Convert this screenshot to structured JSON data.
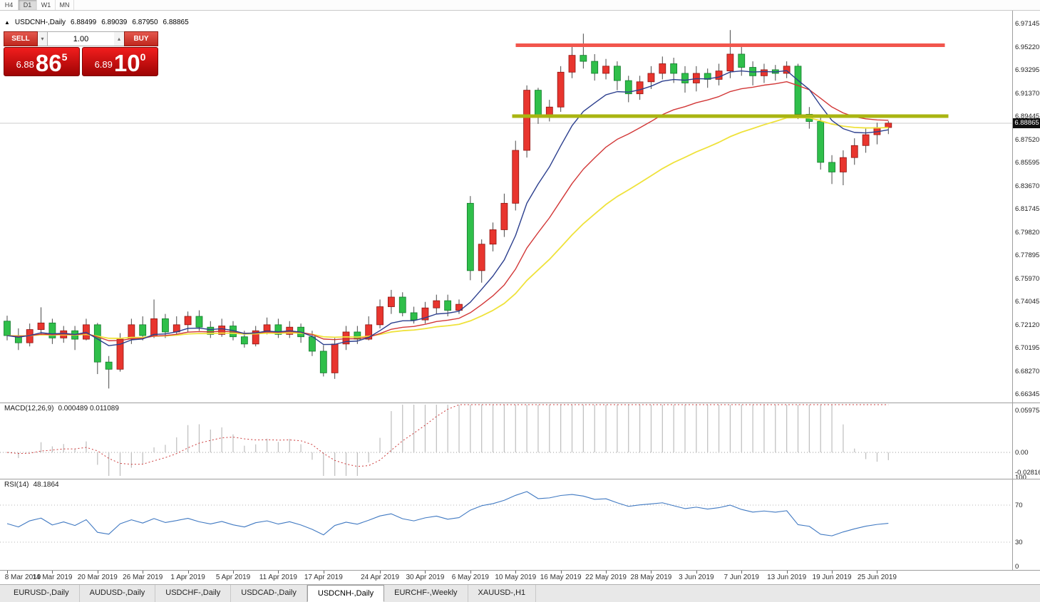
{
  "toolbar": {
    "timeframes": [
      {
        "label": "H4",
        "active": false
      },
      {
        "label": "D1",
        "active": true
      },
      {
        "label": "W1",
        "active": false
      },
      {
        "label": "MN",
        "active": false
      }
    ]
  },
  "symbol_bar": {
    "direction_arrow": "▲",
    "symbol": "USDCNH-,Daily",
    "open": "6.88499",
    "high": "6.89039",
    "low": "6.87950",
    "close": "6.88865"
  },
  "trade_panel": {
    "sell_label": "SELL",
    "buy_label": "BUY",
    "volume": "1.00",
    "volume_down_glyph": "▾",
    "volume_up_glyph": "▴",
    "sell_price": {
      "prefix": "6.88",
      "big": "86",
      "sup": "5"
    },
    "buy_price": {
      "prefix": "6.89",
      "big": "10",
      "sup": "0"
    }
  },
  "price_axis": {
    "labels": [
      "6.97145",
      "6.95220",
      "6.93295",
      "6.91370",
      "6.89445",
      "6.87520",
      "6.85595",
      "6.83670",
      "6.81745",
      "6.79820",
      "6.77895",
      "6.75970",
      "6.74045",
      "6.72120",
      "6.70195",
      "6.68270",
      "6.66345"
    ],
    "current": "6.88865"
  },
  "macd_panel": {
    "label": "MACD(12,26,9)",
    "values": "0.000489 0.011089",
    "axis": [
      "0.059758",
      "0.00",
      "-0.02816"
    ]
  },
  "rsi_panel": {
    "label": "RSI(14)",
    "value": "48.1864",
    "axis": [
      "100",
      "70",
      "30",
      "0"
    ]
  },
  "date_axis": {
    "ticks": [
      {
        "label": "8 Mar 2019",
        "index": 0
      },
      {
        "label": "14 Mar 2019",
        "index": 4
      },
      {
        "label": "20 Mar 2019",
        "index": 8
      },
      {
        "label": "26 Mar 2019",
        "index": 12
      },
      {
        "label": "1 Apr 2019",
        "index": 16
      },
      {
        "label": "5 Apr 2019",
        "index": 20
      },
      {
        "label": "11 Apr 2019",
        "index": 24
      },
      {
        "label": "17 Apr 2019",
        "index": 28
      },
      {
        "label": "24 Apr 2019",
        "index": 33
      },
      {
        "label": "30 Apr 2019",
        "index": 37
      },
      {
        "label": "6 May 2019",
        "index": 41
      },
      {
        "label": "10 May 2019",
        "index": 45
      },
      {
        "label": "16 May 2019",
        "index": 49
      },
      {
        "label": "22 May 2019",
        "index": 53
      },
      {
        "label": "28 May 2019",
        "index": 57
      },
      {
        "label": "3 Jun 2019",
        "index": 61
      },
      {
        "label": "7 Jun 2019",
        "index": 65
      },
      {
        "label": "13 Jun 2019",
        "index": 69
      },
      {
        "label": "19 Jun 2019",
        "index": 73
      },
      {
        "label": "25 Jun 2019",
        "index": 77
      }
    ]
  },
  "tabs": {
    "items": [
      {
        "label": "EURUSD-,Daily",
        "active": false
      },
      {
        "label": "AUDUSD-,Daily",
        "active": false
      },
      {
        "label": "USDCHF-,Daily",
        "active": false
      },
      {
        "label": "USDCAD-,Daily",
        "active": false
      },
      {
        "label": "USDCNH-,Daily",
        "active": true
      },
      {
        "label": "EURCHF-,Weekly",
        "active": false
      },
      {
        "label": "XAUUSD-,H1",
        "active": false
      }
    ]
  },
  "colors": {
    "up_candle": "#e8352e",
    "up_border": "#8f1410",
    "down_candle": "#2fbf4a",
    "down_border": "#127a2b",
    "wick": "#4a4a4a",
    "ma_fast": "#2c3f8e",
    "ma_mid": "#d23737",
    "ma_slow": "#efe23b",
    "resistance": "#f2564d",
    "support": "#a9b512",
    "current_price_line": "#cccccc",
    "badge_bg": "#101010",
    "macd_hist": "#bdbdbd",
    "macd_signal": "#cc3b3b",
    "rsi_line": "#4079c2",
    "level_line": "#b5b5b5"
  },
  "chart_data": {
    "type": "candlestick",
    "title": "USDCNH-,Daily",
    "current_price": 6.88865,
    "y_axis": {
      "top_price": 6.97145,
      "step": 0.01925
    },
    "ohlc": [
      [
        "8 Mar",
        6.724,
        6.7285,
        6.708,
        6.712
      ],
      [
        "11 Mar",
        6.712,
        6.718,
        6.7,
        6.706
      ],
      [
        "12 Mar",
        6.706,
        6.722,
        6.703,
        6.717
      ],
      [
        "13 Mar",
        6.717,
        6.7355,
        6.712,
        6.7225
      ],
      [
        "14 Mar",
        6.7225,
        6.726,
        6.705,
        6.71
      ],
      [
        "15 Mar",
        6.71,
        6.72,
        6.706,
        6.716
      ],
      [
        "18 Mar",
        6.716,
        6.72,
        6.7,
        6.709
      ],
      [
        "19 Mar",
        6.709,
        6.726,
        6.708,
        6.721
      ],
      [
        "20 Mar",
        6.721,
        6.7225,
        6.68,
        6.69
      ],
      [
        "21 Mar",
        6.69,
        6.695,
        6.668,
        6.684
      ],
      [
        "22 Mar",
        6.684,
        6.714,
        6.682,
        6.709
      ],
      [
        "25 Mar",
        6.709,
        6.726,
        6.705,
        6.721
      ],
      [
        "26 Mar",
        6.721,
        6.728,
        6.708,
        6.712
      ],
      [
        "27 Mar",
        6.712,
        6.742,
        6.71,
        6.726
      ],
      [
        "28 Mar",
        6.726,
        6.73,
        6.71,
        6.715
      ],
      [
        "29 Mar",
        6.715,
        6.728,
        6.712,
        6.721
      ],
      [
        "1 Apr",
        6.721,
        6.732,
        6.715,
        6.728
      ],
      [
        "2 Apr",
        6.728,
        6.733,
        6.716,
        6.719
      ],
      [
        "3 Apr",
        6.719,
        6.724,
        6.71,
        6.713
      ],
      [
        "4 Apr",
        6.713,
        6.726,
        6.711,
        6.72
      ],
      [
        "5 Apr",
        6.72,
        6.724,
        6.708,
        6.711
      ],
      [
        "8 Apr",
        6.711,
        6.716,
        6.702,
        6.705
      ],
      [
        "9 Apr",
        6.705,
        6.72,
        6.703,
        6.716
      ],
      [
        "10 Apr",
        6.716,
        6.727,
        6.713,
        6.721
      ],
      [
        "11 Apr",
        6.721,
        6.726,
        6.71,
        6.713
      ],
      [
        "12 Apr",
        6.713,
        6.724,
        6.71,
        6.719
      ],
      [
        "15 Apr",
        6.719,
        6.722,
        6.706,
        6.711
      ],
      [
        "16 Apr",
        6.711,
        6.716,
        6.695,
        6.699
      ],
      [
        "17 Apr",
        6.699,
        6.704,
        6.678,
        6.681
      ],
      [
        "18 Apr",
        6.681,
        6.71,
        6.676,
        6.705
      ],
      [
        "19 Apr",
        6.705,
        6.72,
        6.7,
        6.715
      ],
      [
        "22 Apr",
        6.715,
        6.72,
        6.705,
        6.709
      ],
      [
        "23 Apr",
        6.709,
        6.728,
        6.708,
        6.721
      ],
      [
        "24 Apr",
        6.721,
        6.742,
        6.718,
        6.736
      ],
      [
        "25 Apr",
        6.736,
        6.75,
        6.73,
        6.744
      ],
      [
        "26 Apr",
        6.744,
        6.748,
        6.728,
        6.731
      ],
      [
        "29 Apr",
        6.731,
        6.736,
        6.722,
        6.725
      ],
      [
        "30 Apr",
        6.725,
        6.74,
        6.722,
        6.735
      ],
      [
        "1 May",
        6.735,
        6.746,
        6.73,
        6.741
      ],
      [
        "2 May",
        6.741,
        6.746,
        6.728,
        6.733
      ],
      [
        "3 May",
        6.733,
        6.742,
        6.73,
        6.738
      ],
      [
        "6 May",
        6.822,
        6.828,
        6.758,
        6.766
      ],
      [
        "7 May",
        6.766,
        6.792,
        6.756,
        6.788
      ],
      [
        "8 May",
        6.788,
        6.806,
        6.782,
        6.8
      ],
      [
        "9 May",
        6.8,
        6.83,
        6.794,
        6.822
      ],
      [
        "10 May",
        6.822,
        6.874,
        6.816,
        6.866
      ],
      [
        "13 May",
        6.866,
        6.92,
        6.86,
        6.916
      ],
      [
        "14 May",
        6.916,
        6.918,
        6.888,
        6.894
      ],
      [
        "15 May",
        6.894,
        6.908,
        6.89,
        6.902
      ],
      [
        "16 May",
        6.902,
        6.936,
        6.898,
        6.931
      ],
      [
        "17 May",
        6.931,
        6.952,
        6.926,
        6.945
      ],
      [
        "20 May",
        6.945,
        6.963,
        6.934,
        6.94
      ],
      [
        "21 May",
        6.94,
        6.946,
        6.924,
        6.93
      ],
      [
        "22 May",
        6.93,
        6.942,
        6.925,
        6.936
      ],
      [
        "23 May",
        6.936,
        6.94,
        6.916,
        6.924
      ],
      [
        "24 May",
        6.924,
        6.928,
        6.906,
        6.913
      ],
      [
        "27 May",
        6.913,
        6.928,
        6.908,
        6.923
      ],
      [
        "28 May",
        6.923,
        6.936,
        6.917,
        6.93
      ],
      [
        "29 May",
        6.93,
        6.944,
        6.925,
        6.938
      ],
      [
        "30 May",
        6.938,
        6.943,
        6.922,
        6.93
      ],
      [
        "31 May",
        6.93,
        6.936,
        6.914,
        6.922
      ],
      [
        "3 Jun",
        6.922,
        6.936,
        6.915,
        6.93
      ],
      [
        "4 Jun",
        6.93,
        6.934,
        6.918,
        6.925
      ],
      [
        "5 Jun",
        6.925,
        6.938,
        6.92,
        6.932
      ],
      [
        "6 Jun",
        6.932,
        6.966,
        6.926,
        6.946
      ],
      [
        "7 Jun",
        6.946,
        6.952,
        6.928,
        6.935
      ],
      [
        "10 Jun",
        6.935,
        6.94,
        6.92,
        6.928
      ],
      [
        "11 Jun",
        6.928,
        6.938,
        6.922,
        6.933
      ],
      [
        "12 Jun",
        6.933,
        6.937,
        6.924,
        6.93
      ],
      [
        "13 Jun",
        6.93,
        6.94,
        6.926,
        6.936
      ],
      [
        "14 Jun",
        6.936,
        6.938,
        6.892,
        6.896
      ],
      [
        "17 Jun",
        6.896,
        6.902,
        6.884,
        6.89
      ],
      [
        "18 Jun",
        6.89,
        6.894,
        6.85,
        6.856
      ],
      [
        "19 Jun",
        6.856,
        6.862,
        6.838,
        6.848
      ],
      [
        "20 Jun",
        6.848,
        6.866,
        6.837,
        6.86
      ],
      [
        "21 Jun",
        6.86,
        6.876,
        6.854,
        6.87
      ],
      [
        "24 Jun",
        6.87,
        6.884,
        6.864,
        6.879
      ],
      [
        "25 Jun",
        6.879,
        6.889,
        6.871,
        6.885
      ],
      [
        "26 Jun",
        6.88499,
        6.89039,
        6.8795,
        6.88865
      ]
    ],
    "moving_averages": [
      {
        "period": 8,
        "type": "ema",
        "color": "#2c3f8e"
      },
      {
        "period": 16,
        "type": "ema",
        "color": "#d23737"
      },
      {
        "period": 30,
        "type": "ema",
        "color": "#efe23b"
      }
    ],
    "overlays": [
      {
        "name": "resistance-line",
        "type": "horizontal-segment",
        "price": 6.9535,
        "index_from": 45,
        "index_to": 83,
        "color": "#f2564d",
        "width": 5
      },
      {
        "name": "support-line",
        "type": "horizontal-segment",
        "price": 6.8945,
        "index_from": 44.7,
        "index_to": 83.3,
        "color": "#a9b512",
        "width": 5
      }
    ],
    "indicators": {
      "macd": {
        "fast": 12,
        "slow": 26,
        "signal": 9,
        "scale_max": 0.059758,
        "scale_min": -0.02816,
        "last_main": 0.000489,
        "last_signal": 0.011089
      },
      "rsi": {
        "period": 14,
        "levels": [
          70,
          30
        ],
        "last": 48.1864
      }
    }
  }
}
